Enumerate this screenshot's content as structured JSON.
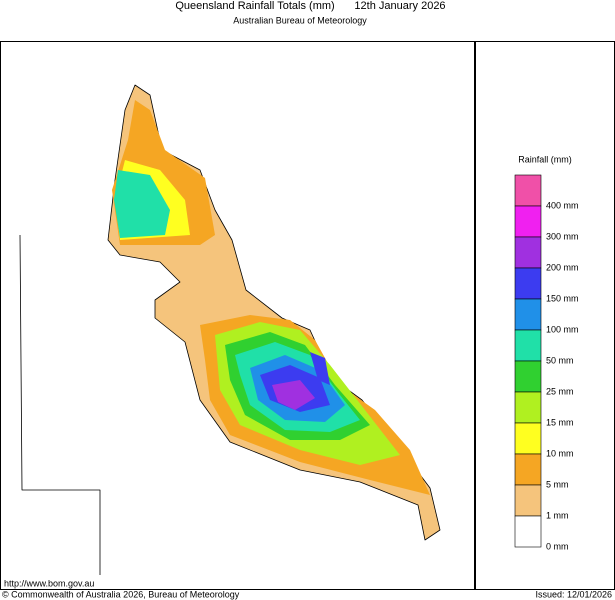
{
  "header": {
    "title": "Queensland Rainfall Totals (mm)",
    "date": "12th January 2026",
    "subtitle": "Australian Bureau of Meteorology"
  },
  "legend": {
    "title": "Rainfall (mm)",
    "items": [
      {
        "label": "400 mm",
        "color": "#f050a8"
      },
      {
        "label": "300 mm",
        "color": "#f020f0"
      },
      {
        "label": "200 mm",
        "color": "#a030e0"
      },
      {
        "label": "150 mm",
        "color": "#3c3cf0"
      },
      {
        "label": "100 mm",
        "color": "#2090e8"
      },
      {
        "label": "50 mm",
        "color": "#20e0a8"
      },
      {
        "label": "25 mm",
        "color": "#30d030"
      },
      {
        "label": "15 mm",
        "color": "#b0f020"
      },
      {
        "label": "10 mm",
        "color": "#ffff20"
      },
      {
        "label": "5 mm",
        "color": "#f5a623"
      },
      {
        "label": "1 mm",
        "color": "#f5c47c"
      },
      {
        "label": "0 mm",
        "color": "#ffffff"
      }
    ]
  },
  "footer": {
    "url": "http://www.bom.gov.au",
    "copyright": "© Commonwealth of Australia 2026, Bureau of Meteorology",
    "issued": "Issued: 12/01/2026"
  }
}
